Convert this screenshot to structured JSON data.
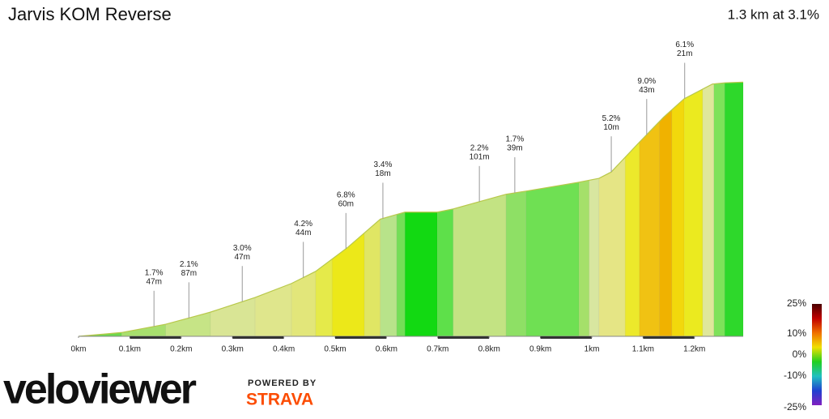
{
  "chart_data": {
    "type": "elevation",
    "title": "Jarvis KOM Reverse",
    "subtitle": "1.3 km at 3.1%",
    "x": [
      0,
      0.084,
      0.17,
      0.257,
      0.344,
      0.415,
      0.462,
      0.525,
      0.588,
      0.636,
      0.699,
      0.73,
      0.833,
      0.872,
      0.975,
      1.014,
      1.038,
      1.093,
      1.14,
      1.18,
      1.235,
      1.259,
      1.295
    ],
    "values": [
      0,
      0.6,
      1.9,
      3.8,
      6.1,
      8.3,
      10.2,
      14.0,
      18.4,
      19.5,
      19.5,
      20.0,
      22.3,
      22.8,
      24.2,
      24.8,
      25.8,
      30.5,
      34.4,
      37.3,
      39.6,
      39.8,
      39.9
    ],
    "line_color": "#b8c84a",
    "segments": [
      {
        "from": 0,
        "to": 0.084,
        "color": "#6cd94d"
      },
      {
        "from": 0.084,
        "to": 0.17,
        "color": "#a8df6e"
      },
      {
        "from": 0.17,
        "to": 0.257,
        "color": "#c6e486"
      },
      {
        "from": 0.257,
        "to": 0.344,
        "color": "#d9e595"
      },
      {
        "from": 0.344,
        "to": 0.415,
        "color": "#dfe68c"
      },
      {
        "from": 0.415,
        "to": 0.462,
        "color": "#e2e67a"
      },
      {
        "from": 0.462,
        "to": 0.494,
        "color": "#e5ea4a"
      },
      {
        "from": 0.494,
        "to": 0.557,
        "color": "#ece819"
      },
      {
        "from": 0.557,
        "to": 0.588,
        "color": "#e0e664"
      },
      {
        "from": 0.588,
        "to": 0.62,
        "color": "#b8e38a"
      },
      {
        "from": 0.62,
        "to": 0.636,
        "color": "#74de57"
      },
      {
        "from": 0.636,
        "to": 0.699,
        "color": "#12d912"
      },
      {
        "from": 0.699,
        "to": 0.73,
        "color": "#5ee04a"
      },
      {
        "from": 0.73,
        "to": 0.833,
        "color": "#c3e383"
      },
      {
        "from": 0.833,
        "to": 0.872,
        "color": "#8ee065"
      },
      {
        "from": 0.872,
        "to": 0.975,
        "color": "#6fe053"
      },
      {
        "from": 0.975,
        "to": 0.995,
        "color": "#a5e06a"
      },
      {
        "from": 0.995,
        "to": 1.014,
        "color": "#d8e6a0"
      },
      {
        "from": 1.014,
        "to": 1.065,
        "color": "#e5e585"
      },
      {
        "from": 1.065,
        "to": 1.093,
        "color": "#ece92b"
      },
      {
        "from": 1.093,
        "to": 1.132,
        "color": "#f0c213"
      },
      {
        "from": 1.132,
        "to": 1.156,
        "color": "#f0b200"
      },
      {
        "from": 1.156,
        "to": 1.18,
        "color": "#f2d80c"
      },
      {
        "from": 1.18,
        "to": 1.216,
        "color": "#ebea1f"
      },
      {
        "from": 1.216,
        "to": 1.238,
        "color": "#dfe79b"
      },
      {
        "from": 1.238,
        "to": 1.259,
        "color": "#7ee25a"
      },
      {
        "from": 1.259,
        "to": 1.295,
        "color": "#2ed82b"
      }
    ],
    "annotations": [
      {
        "x": 0.147,
        "grade": "1.7%",
        "length": "47m"
      },
      {
        "x": 0.215,
        "grade": "2.1%",
        "length": "87m"
      },
      {
        "x": 0.319,
        "grade": "3.0%",
        "length": "47m"
      },
      {
        "x": 0.438,
        "grade": "4.2%",
        "length": "44m"
      },
      {
        "x": 0.521,
        "grade": "6.8%",
        "length": "60m"
      },
      {
        "x": 0.593,
        "grade": "3.4%",
        "length": "18m"
      },
      {
        "x": 0.781,
        "grade": "2.2%",
        "length": "101m"
      },
      {
        "x": 0.85,
        "grade": "1.7%",
        "length": "39m"
      },
      {
        "x": 1.038,
        "grade": "5.2%",
        "length": "10m"
      },
      {
        "x": 1.107,
        "grade": "9.0%",
        "length": "43m"
      },
      {
        "x": 1.181,
        "grade": "6.1%",
        "length": "21m"
      }
    ],
    "xlim": [
      0,
      1.295
    ],
    "ylim": [
      0,
      50
    ],
    "xticks": [
      {
        "value": 0,
        "label": "0km"
      },
      {
        "value": 0.1,
        "label": "0.1km"
      },
      {
        "value": 0.2,
        "label": "0.2km"
      },
      {
        "value": 0.3,
        "label": "0.3km"
      },
      {
        "value": 0.4,
        "label": "0.4km"
      },
      {
        "value": 0.5,
        "label": "0.5km"
      },
      {
        "value": 0.6,
        "label": "0.6km"
      },
      {
        "value": 0.7,
        "label": "0.7km"
      },
      {
        "value": 0.8,
        "label": "0.8km"
      },
      {
        "value": 0.9,
        "label": "0.9km"
      },
      {
        "value": 1,
        "label": "1km"
      },
      {
        "value": 1.1,
        "label": "1.1km"
      },
      {
        "value": 1.2,
        "label": "1.2km"
      }
    ],
    "legend": {
      "ticks": [
        {
          "value": 25,
          "label": "25%"
        },
        {
          "value": 10,
          "label": "10%"
        },
        {
          "value": 0,
          "label": "0%"
        },
        {
          "value": -10,
          "label": "-10%"
        },
        {
          "value": -25,
          "label": "-25%"
        }
      ],
      "colors": [
        "#4a0000",
        "#c00000",
        "#f07000",
        "#f0e000",
        "#20d020",
        "#20c0c0",
        "#2040d0",
        "#8020c0"
      ]
    }
  },
  "branding": {
    "logo": "veloviewer",
    "powered": "POWERED BY",
    "strava": "STRAVA"
  }
}
